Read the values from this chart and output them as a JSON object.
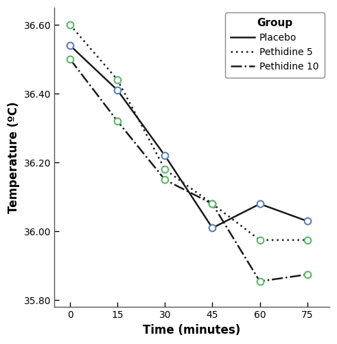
{
  "time": [
    0,
    15,
    30,
    45,
    60,
    75
  ],
  "placebo": [
    36.54,
    36.41,
    36.22,
    36.01,
    36.08,
    36.03
  ],
  "pethidine5": [
    36.6,
    36.44,
    36.18,
    36.08,
    35.975,
    35.975
  ],
  "pethidine10": [
    36.5,
    36.32,
    36.15,
    36.08,
    35.855,
    35.875
  ],
  "xlabel": "Time (minutes)",
  "ylabel": "Temperature (ºC)",
  "legend_title": "Group",
  "legend_labels": [
    "Placebo",
    "Pethidine 5",
    "Pethidine 10"
  ],
  "ylim": [
    35.78,
    36.65
  ],
  "yticks": [
    35.8,
    36.0,
    36.2,
    36.4,
    36.6
  ],
  "xticks": [
    0,
    15,
    30,
    45,
    60,
    75
  ],
  "xlim": [
    -5,
    82
  ],
  "line_color": "#1a1a1a",
  "marker_color_placebo": "#5b7fb5",
  "marker_color_pethidine": "#5db56e",
  "bg_color": "#ffffff"
}
